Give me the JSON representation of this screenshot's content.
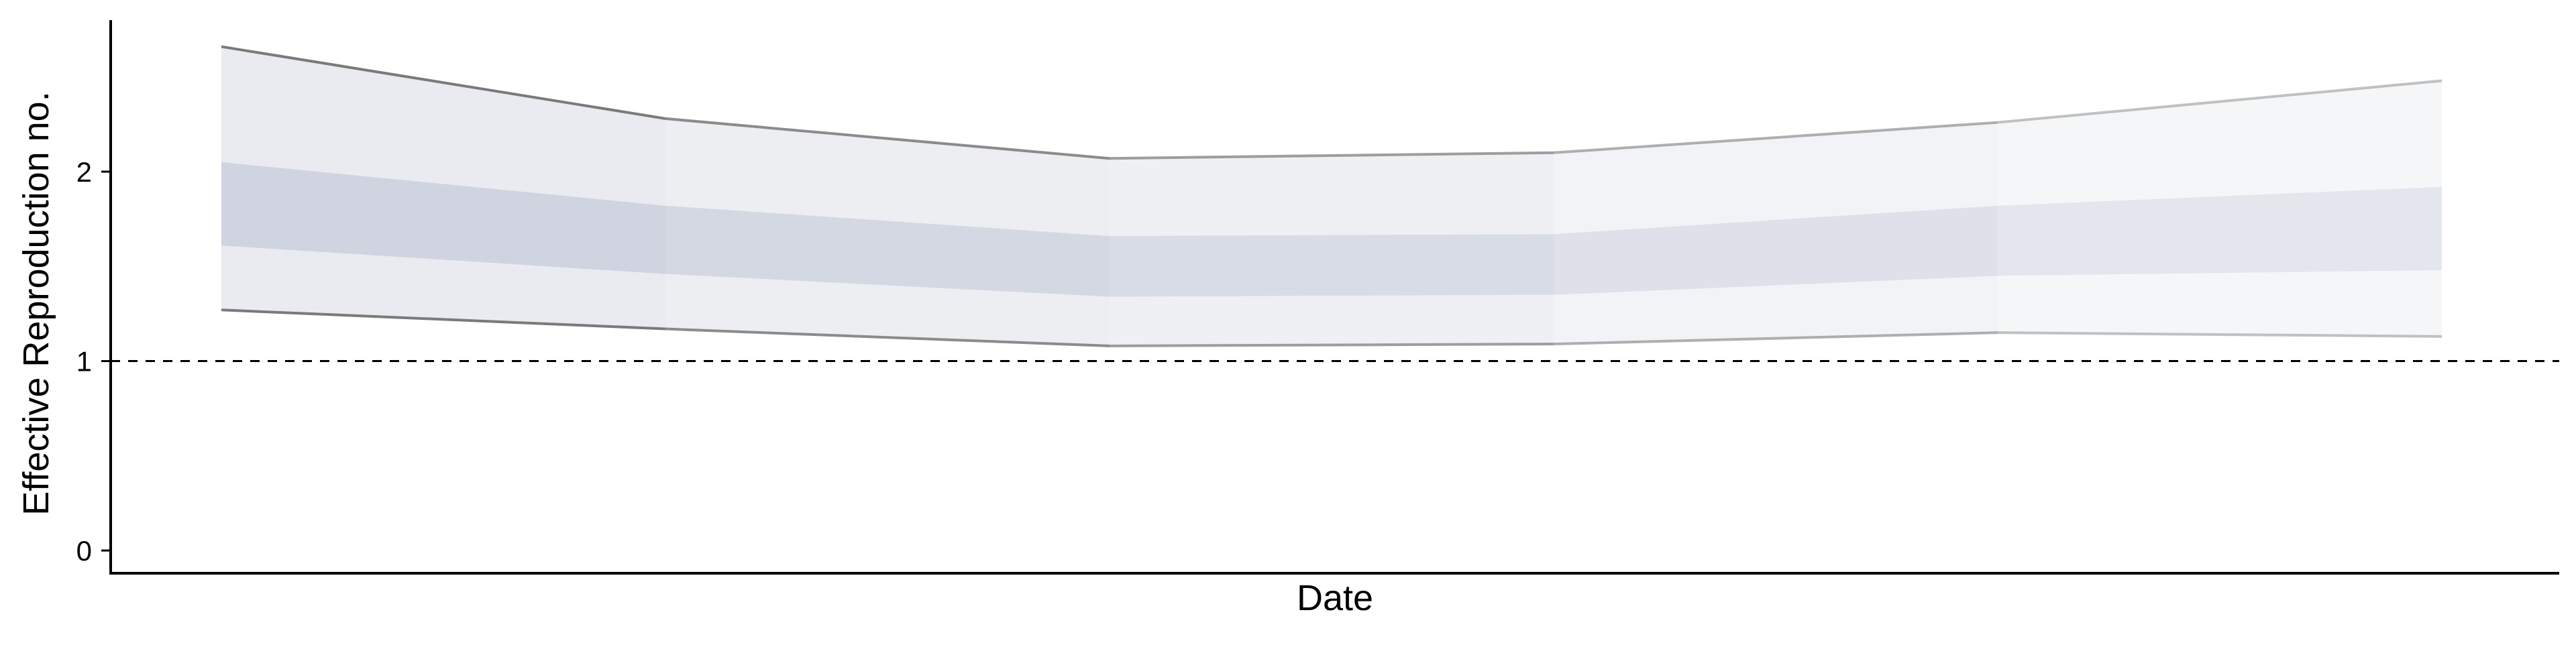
{
  "chart_data": {
    "type": "area",
    "title": "",
    "xlabel": "Date",
    "ylabel": "Effective Reproduction no.",
    "x": [
      1,
      2,
      3,
      4,
      5,
      6
    ],
    "x_tick_labels": [],
    "ylim": [
      -0.12,
      2.8
    ],
    "y_ticks": [
      0,
      1,
      2
    ],
    "y_tick_labels": [
      "0",
      "1",
      "2"
    ],
    "grid": false,
    "reference_line": {
      "y": 1,
      "style": "dashed"
    },
    "series": [
      {
        "lower_outer": [
          1.27,
          1.17,
          1.08,
          1.09,
          1.15,
          1.13
        ],
        "lower_inner": [
          1.61,
          1.46,
          1.34,
          1.35,
          1.45,
          1.48
        ],
        "upper_inner": [
          2.05,
          1.82,
          1.66,
          1.67,
          1.82,
          1.92
        ],
        "upper_outer": [
          2.66,
          2.28,
          2.07,
          2.1,
          2.26,
          2.48
        ]
      }
    ],
    "colors": {
      "outer_band": "#e9ebf0",
      "inner_band": "#cfd4e0",
      "bound_line": "#7a7a7a",
      "axis": "#000000",
      "reference": "#000000"
    }
  }
}
